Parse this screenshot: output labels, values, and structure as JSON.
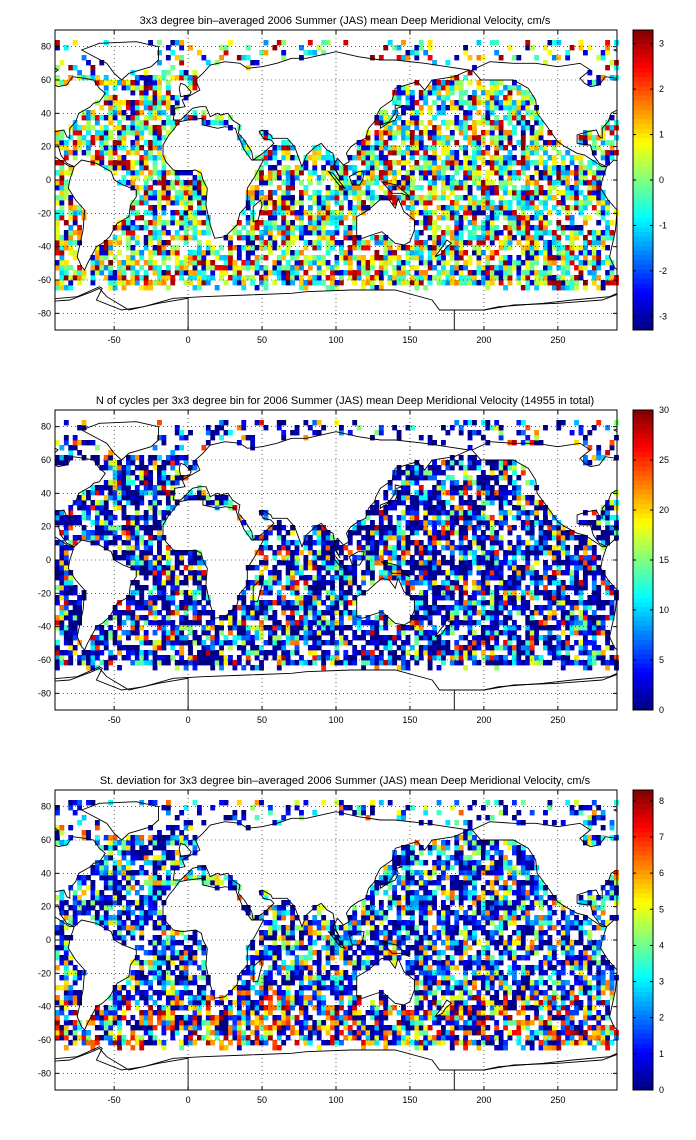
{
  "panels": [
    {
      "title": "3x3 degree bin–averaged 2006 Summer (JAS) mean Deep Meridional Velocity, cm/s",
      "colorbar_ticks": [
        "-3",
        "-2",
        "-1",
        "0",
        "1",
        "2",
        "3"
      ],
      "colorbar_range": [
        -3.3,
        3.3
      ],
      "colormap": "jet"
    },
    {
      "title": "N of cycles per 3x3 degree bin for 2006 Summer (JAS) mean Deep Meridional Velocity (14955 in total)",
      "colorbar_ticks": [
        "0",
        "5",
        "10",
        "15",
        "20",
        "25",
        "30"
      ],
      "colorbar_range": [
        0,
        30
      ],
      "colormap": "jet"
    },
    {
      "title": "St. deviation for 3x3 degree bin–averaged 2006 Summer (JAS) mean Deep Meridional Velocity, cm/s",
      "colorbar_ticks": [
        "0",
        "1",
        "2",
        "3",
        "4",
        "5",
        "6",
        "7",
        "8"
      ],
      "colorbar_range": [
        0,
        8.3
      ],
      "colormap": "jet"
    }
  ],
  "axes": {
    "xlim": [
      -90,
      290
    ],
    "ylim": [
      -90,
      90
    ],
    "xticks": [
      "-50",
      "0",
      "50",
      "100",
      "150",
      "200",
      "250"
    ],
    "yticks": [
      "-80",
      "-60",
      "-40",
      "-20",
      "0",
      "20",
      "40",
      "60",
      "80"
    ],
    "grid": true
  },
  "colors": {
    "coast": "#000000",
    "grid": "#000000"
  }
}
